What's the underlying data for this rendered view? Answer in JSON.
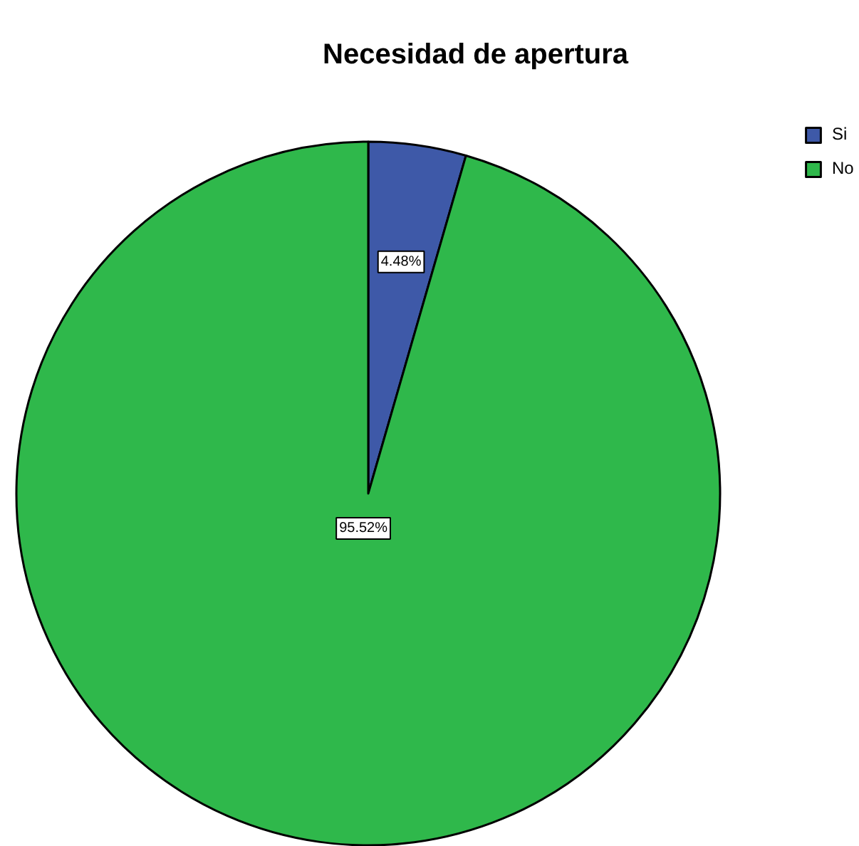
{
  "chart_data": {
    "type": "pie",
    "title": "Necesidad de apertura",
    "categories": [
      "Si",
      "No"
    ],
    "values": [
      4.48,
      95.52
    ],
    "colors": [
      "#3e59a8",
      "#2fb84b"
    ],
    "value_labels": [
      "4.48%",
      "95.52%"
    ],
    "legend": "top right"
  }
}
